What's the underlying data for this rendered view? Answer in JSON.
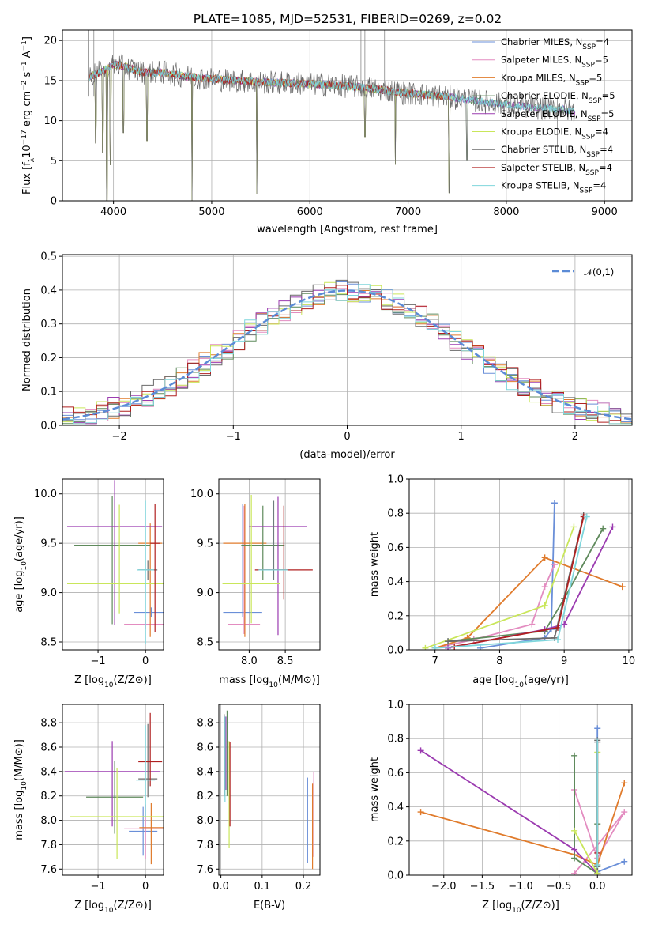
{
  "title": "PLATE=1085, MJD=52531, FIBERID=0269, z=0.02",
  "colors": [
    "#6a8fd8",
    "#e38cc0",
    "#e07b2c",
    "#5f8a5c",
    "#9b3bb0",
    "#c9e65a",
    "#6a6a6a",
    "#b02020",
    "#7fd6dc"
  ],
  "chart_data": [
    {
      "id": "spectrum",
      "type": "line",
      "xlabel": "wavelength [Angstrom, rest frame]",
      "ylabel": "Flux [f_λ10^-17 erg cm^-2 s^-1 A^-1]",
      "xlim": [
        3480,
        9280
      ],
      "ylim": [
        0,
        21.3
      ],
      "xticks": [
        4000,
        5000,
        6000,
        7000,
        8000,
        9000
      ],
      "yticks": [
        0,
        5,
        10,
        15,
        20
      ],
      "legend_position": "top-right",
      "series": [
        {
          "name": "Chabrier MILES, N_SSP=4",
          "label_main": "Chabrier MILES, N",
          "label_sub": "SSP",
          "label_tail": "=4",
          "color": "#6a8fd8"
        },
        {
          "name": "Salpeter MILES, N_SSP=5",
          "label_main": "Salpeter MILES, N",
          "label_sub": "SSP",
          "label_tail": "=5",
          "color": "#e38cc0"
        },
        {
          "name": "Kroupa MILES, N_SSP=5",
          "label_main": "Kroupa MILES, N",
          "label_sub": "SSP",
          "label_tail": "=5",
          "color": "#e07b2c"
        },
        {
          "name": "Chabrier ELODIE, N_SSP=5",
          "label_main": "Chabrier ELODIE, N",
          "label_sub": "SSP",
          "label_tail": "=5",
          "color": "#5f8a5c"
        },
        {
          "name": "Salpeter ELODIE, N_SSP=5",
          "label_main": "Salpeter ELODIE, N",
          "label_sub": "SSP",
          "label_tail": "=5",
          "color": "#9b3bb0"
        },
        {
          "name": "Kroupa ELODIE, N_SSP=4",
          "label_main": "Kroupa ELODIE, N",
          "label_sub": "SSP",
          "label_tail": "=4",
          "color": "#c9e65a"
        },
        {
          "name": "Chabrier STELIB, N_SSP=4",
          "label_main": "Chabrier STELIB, N",
          "label_sub": "SSP",
          "label_tail": "=4",
          "color": "#6a6a6a"
        },
        {
          "name": "Salpeter STELIB, N_SSP=4",
          "label_main": "Salpeter STELIB, N",
          "label_sub": "SSP",
          "label_tail": "=4",
          "color": "#b02020"
        },
        {
          "name": "Kroupa STELIB, N_SSP=4",
          "label_main": "Kroupa STELIB, N",
          "label_sub": "SSP",
          "label_tail": "=4",
          "color": "#7fd6dc"
        }
      ],
      "continuum": [
        [
          3750,
          15.5
        ],
        [
          3900,
          16.2
        ],
        [
          4000,
          17.0
        ],
        [
          4100,
          16.8
        ],
        [
          4300,
          16.0
        ],
        [
          4500,
          16.0
        ],
        [
          4700,
          15.6
        ],
        [
          5000,
          15.2
        ],
        [
          5500,
          14.8
        ],
        [
          6000,
          14.6
        ],
        [
          6500,
          14.2
        ],
        [
          7000,
          13.4
        ],
        [
          7400,
          13.0
        ],
        [
          7600,
          12.6
        ],
        [
          8000,
          12.0
        ],
        [
          8300,
          11.6
        ],
        [
          8600,
          11.4
        ],
        [
          8700,
          11.0
        ]
      ],
      "absorption_lines": [
        [
          3820,
          7.2
        ],
        [
          3890,
          6.0
        ],
        [
          3933,
          0.0
        ],
        [
          3968,
          4.5
        ],
        [
          4102,
          8.5
        ],
        [
          4340,
          7.5
        ],
        [
          4800,
          0.0
        ],
        [
          5460,
          0.8
        ],
        [
          6560,
          8.0
        ],
        [
          6870,
          4.5
        ],
        [
          7420,
          1.0
        ],
        [
          7600,
          5.0
        ]
      ],
      "emission_spikes": [
        [
          3750,
          21.3
        ],
        [
          3800,
          21.3
        ],
        [
          6520,
          21.3
        ],
        [
          6560,
          21.3
        ],
        [
          6760,
          21.3
        ],
        [
          8520,
          6.0
        ]
      ]
    },
    {
      "id": "residual_histogram",
      "type": "bar",
      "xlabel": "(data-model)/error",
      "ylabel": "Normed distribution",
      "xlim": [
        -2.5,
        2.5
      ],
      "ylim": [
        0,
        0.505
      ],
      "xticks": [
        -2,
        -1,
        0,
        1,
        2
      ],
      "yticks": [
        0.0,
        0.1,
        0.2,
        0.3,
        0.4,
        0.5
      ],
      "bin_width": 0.1,
      "gaussian_label": "𝒩(0,1)",
      "gaussian_color": "#5b8bd6",
      "legend_position": "top-right"
    },
    {
      "id": "z_vs_age",
      "type": "scatter",
      "xlabel": "Z [log10(Z/Z⊙)]",
      "xlabel_main": "Z [log",
      "xlabel_sub": "10",
      "xlabel_tail": "(Z/Z⊙)]",
      "ylabel": "age [log10(age/yr)]",
      "ylabel_main": "age  [log",
      "ylabel_sub": "10",
      "ylabel_tail": "(age/yr)]",
      "xlim": [
        -1.75,
        0.38
      ],
      "ylim": [
        8.42,
        10.15
      ],
      "xticks": [
        -1,
        0
      ],
      "yticks": [
        8.5,
        9.0,
        9.5,
        10.0
      ],
      "points": [
        {
          "x": 0.12,
          "y": 8.8,
          "xerr": 0.37,
          "yerr_lo": 0.05,
          "yerr_hi": 0.05,
          "color": "#6a8fd8"
        },
        {
          "x": 0.0,
          "y": 8.68,
          "xerr": 0.45,
          "yerr_lo": 0.05,
          "yerr_hi": 0.05,
          "color": "#e38cc0"
        },
        {
          "x": 0.1,
          "y": 9.5,
          "xerr": 0.25,
          "yerr_lo": 0.95,
          "yerr_hi": 0.2,
          "color": "#e07b2c"
        },
        {
          "x": -0.7,
          "y": 9.48,
          "xerr": 0.8,
          "yerr_lo": 0.8,
          "yerr_hi": 0.5,
          "color": "#5f8a5c"
        },
        {
          "x": -0.65,
          "y": 9.67,
          "xerr": 1.0,
          "yerr_lo": 1.0,
          "yerr_hi": 0.47,
          "color": "#9b3bb0"
        },
        {
          "x": -0.55,
          "y": 9.09,
          "xerr": 1.1,
          "yerr_lo": 0.3,
          "yerr_hi": 0.8,
          "color": "#c9e65a"
        },
        {
          "x": 0.05,
          "y": 9.23,
          "xerr": 0.2,
          "yerr_lo": 0.1,
          "yerr_hi": 0.1,
          "color": "#6a6a6a"
        },
        {
          "x": 0.2,
          "y": 9.5,
          "xerr": 0.1,
          "yerr_lo": 0.9,
          "yerr_hi": 0.4,
          "color": "#b02020"
        },
        {
          "x": 0.0,
          "y": 9.23,
          "xerr": 0.18,
          "yerr_lo": 0.75,
          "yerr_hi": 0.7,
          "color": "#7fd6dc"
        }
      ]
    },
    {
      "id": "mass_vs_age",
      "type": "scatter",
      "xlabel": "mass [log10(M/M⊙)]",
      "xlabel_main": "mass [log",
      "xlabel_sub": "10",
      "xlabel_tail": "(M/M⊙)]",
      "xlim": [
        7.58,
        8.98
      ],
      "ylim": [
        8.42,
        10.15
      ],
      "xticks": [
        8.0,
        8.5
      ],
      "yticks": [
        8.5,
        9.0,
        9.5,
        10.0
      ],
      "points": [
        {
          "x": 7.91,
          "y": 8.8,
          "xerr": 0.27,
          "yerr_lo": 0.05,
          "yerr_hi": 1.1,
          "color": "#6a8fd8"
        },
        {
          "x": 7.93,
          "y": 8.68,
          "xerr": 0.22,
          "yerr_lo": 0.1,
          "yerr_hi": 1.2,
          "color": "#e38cc0"
        },
        {
          "x": 7.94,
          "y": 9.5,
          "xerr": 0.3,
          "yerr_lo": 0.95,
          "yerr_hi": 0.4,
          "color": "#e07b2c"
        },
        {
          "x": 8.19,
          "y": 9.48,
          "xerr": 0.3,
          "yerr_lo": 0.35,
          "yerr_hi": 0.4,
          "color": "#5f8a5c"
        },
        {
          "x": 8.4,
          "y": 9.67,
          "xerr": 0.4,
          "yerr_lo": 1.1,
          "yerr_hi": 0.3,
          "color": "#9b3bb0"
        },
        {
          "x": 8.03,
          "y": 9.09,
          "xerr": 0.4,
          "yerr_lo": 0.4,
          "yerr_hi": 0.9,
          "color": "#c9e65a"
        },
        {
          "x": 8.34,
          "y": 9.23,
          "xerr": 0.2,
          "yerr_lo": 0.1,
          "yerr_hi": 0.7,
          "color": "#6a6a6a"
        },
        {
          "x": 8.48,
          "y": 9.23,
          "xerr": 0.4,
          "yerr_lo": 0.3,
          "yerr_hi": 0.65,
          "color": "#b02020"
        },
        {
          "x": 8.33,
          "y": 9.23,
          "xerr": 0.2,
          "yerr_lo": 0.1,
          "yerr_hi": 0.7,
          "color": "#7fd6dc"
        }
      ]
    },
    {
      "id": "age_vs_mass_weight",
      "type": "line",
      "xlabel": "age  [log10(age/yr)]",
      "xlabel_main": "age  [log",
      "xlabel_sub": "10",
      "xlabel_tail": "(age/yr)]",
      "ylabel": "mass weight",
      "xlim": [
        6.6,
        10.05
      ],
      "ylim": [
        0,
        1.0
      ],
      "xticks": [
        7,
        8,
        9,
        10
      ],
      "yticks": [
        0.0,
        0.2,
        0.4,
        0.6,
        0.8,
        1.0
      ],
      "series": [
        {
          "color": "#6a8fd8",
          "points": [
            [
              7.7,
              0.01
            ],
            [
              8.7,
              0.07
            ],
            [
              8.8,
              0.12
            ],
            [
              8.85,
              0.86
            ]
          ]
        },
        {
          "color": "#e38cc0",
          "points": [
            [
              7.0,
              0.01
            ],
            [
              7.6,
              0.06
            ],
            [
              8.5,
              0.15
            ],
            [
              8.7,
              0.37
            ],
            [
              8.85,
              0.5
            ]
          ]
        },
        {
          "color": "#e07b2c",
          "points": [
            [
              7.0,
              0.01
            ],
            [
              7.5,
              0.07
            ],
            [
              8.7,
              0.54
            ],
            [
              9.9,
              0.37
            ]
          ]
        },
        {
          "color": "#5f8a5c",
          "points": [
            [
              7.2,
              0.05
            ],
            [
              8.7,
              0.11
            ],
            [
              9.0,
              0.3
            ],
            [
              9.6,
              0.71
            ]
          ]
        },
        {
          "color": "#9b3bb0",
          "points": [
            [
              7.2,
              0.01
            ],
            [
              8.7,
              0.12
            ],
            [
              9.0,
              0.15
            ],
            [
              9.75,
              0.72
            ]
          ]
        },
        {
          "color": "#c9e65a",
          "points": [
            [
              6.85,
              0.01
            ],
            [
              8.7,
              0.26
            ],
            [
              9.15,
              0.72
            ]
          ]
        },
        {
          "color": "#6a6a6a",
          "points": [
            [
              7.2,
              0.05
            ],
            [
              8.85,
              0.07
            ],
            [
              9.3,
              0.79
            ]
          ]
        },
        {
          "color": "#b02020",
          "points": [
            [
              7.3,
              0.02
            ],
            [
              8.9,
              0.13
            ],
            [
              9.3,
              0.78
            ]
          ]
        },
        {
          "color": "#7fd6dc",
          "points": [
            [
              7.0,
              0.01
            ],
            [
              8.9,
              0.06
            ],
            [
              9.35,
              0.78
            ]
          ]
        }
      ]
    },
    {
      "id": "z_vs_mass",
      "type": "scatter",
      "xlabel": "Z [log10(Z/Z⊙)]",
      "xlabel_main": "Z [log",
      "xlabel_sub": "10",
      "xlabel_tail": "(Z/Z⊙)]",
      "ylabel": "mass [log10(M/M⊙)]",
      "ylabel_main": "mass [log",
      "ylabel_sub": "10",
      "ylabel_tail": "(M/M⊙)]",
      "xlim": [
        -1.75,
        0.38
      ],
      "ylim": [
        7.55,
        8.95
      ],
      "xticks": [
        -1,
        0
      ],
      "yticks": [
        7.6,
        7.8,
        8.0,
        8.2,
        8.4,
        8.6,
        8.8
      ],
      "points": [
        {
          "x": -0.05,
          "y": 7.91,
          "xerr": 0.3,
          "yerr_lo": 0.2,
          "yerr_hi": 0.2,
          "color": "#6a8fd8"
        },
        {
          "x": 0.0,
          "y": 7.93,
          "xerr": 0.45,
          "yerr_lo": 0.25,
          "yerr_hi": 0.2,
          "color": "#e38cc0"
        },
        {
          "x": 0.12,
          "y": 7.94,
          "xerr": 0.25,
          "yerr_lo": 0.3,
          "yerr_hi": 0.2,
          "color": "#e07b2c"
        },
        {
          "x": -0.65,
          "y": 8.19,
          "xerr": 0.6,
          "yerr_lo": 0.3,
          "yerr_hi": 0.3,
          "color": "#5f8a5c"
        },
        {
          "x": -0.7,
          "y": 8.4,
          "xerr": 1.0,
          "yerr_lo": 0.45,
          "yerr_hi": 0.25,
          "color": "#9b3bb0"
        },
        {
          "x": -0.6,
          "y": 8.03,
          "xerr": 1.0,
          "yerr_lo": 0.35,
          "yerr_hi": 0.4,
          "color": "#c9e65a"
        },
        {
          "x": 0.05,
          "y": 8.34,
          "xerr": 0.2,
          "yerr_lo": 0.15,
          "yerr_hi": 0.45,
          "color": "#6a6a6a"
        },
        {
          "x": 0.1,
          "y": 8.48,
          "xerr": 0.25,
          "yerr_lo": 0.2,
          "yerr_hi": 0.4,
          "color": "#b02020"
        },
        {
          "x": 0.0,
          "y": 8.33,
          "xerr": 0.2,
          "yerr_lo": 0.3,
          "yerr_hi": 0.45,
          "color": "#7fd6dc"
        }
      ]
    },
    {
      "id": "ebv_vs_mass",
      "type": "scatter",
      "xlabel": "E(B-V)",
      "xlim": [
        -0.005,
        0.24
      ],
      "ylim": [
        7.55,
        8.95
      ],
      "xticks": [
        0.0,
        0.1,
        0.2
      ],
      "yticks": [
        7.6,
        7.8,
        8.0,
        8.2,
        8.4,
        8.6,
        8.8
      ],
      "points": [
        {
          "x": 0.21,
          "y": 8.0,
          "yerr_lo": 0.35,
          "yerr_hi": 0.35,
          "color": "#6a8fd8"
        },
        {
          "x": 0.225,
          "y": 8.1,
          "yerr_lo": 0.4,
          "yerr_hi": 0.3,
          "color": "#e38cc0"
        },
        {
          "x": 0.222,
          "y": 7.95,
          "yerr_lo": 0.35,
          "yerr_hi": 0.35,
          "color": "#e07b2c"
        },
        {
          "x": 0.015,
          "y": 8.5,
          "yerr_lo": 0.3,
          "yerr_hi": 0.4,
          "color": "#5f8a5c"
        },
        {
          "x": 0.012,
          "y": 8.5,
          "yerr_lo": 0.25,
          "yerr_hi": 0.35,
          "color": "#9b3bb0"
        },
        {
          "x": 0.02,
          "y": 8.2,
          "yerr_lo": 0.43,
          "yerr_hi": 0.45,
          "color": "#c9e65a"
        },
        {
          "x": 0.008,
          "y": 8.55,
          "yerr_lo": 0.35,
          "yerr_hi": 0.32,
          "color": "#6a6a6a"
        },
        {
          "x": 0.022,
          "y": 8.3,
          "yerr_lo": 0.35,
          "yerr_hi": 0.34,
          "color": "#b02020"
        },
        {
          "x": 0.01,
          "y": 8.45,
          "yerr_lo": 0.3,
          "yerr_hi": 0.4,
          "color": "#7fd6dc"
        }
      ]
    },
    {
      "id": "z_vs_mass_weight",
      "type": "line",
      "xlabel": "Z [log10(Z/Z⊙)]",
      "xlabel_main": "Z [log",
      "xlabel_sub": "10",
      "xlabel_tail": "(Z/Z⊙)]",
      "ylabel": "mass weight",
      "xlim": [
        -2.45,
        0.45
      ],
      "ylim": [
        0,
        1.0
      ],
      "xticks": [
        -2.0,
        -1.5,
        -1.0,
        -0.5,
        0.0
      ],
      "yticks": [
        0.0,
        0.2,
        0.4,
        0.6,
        0.8,
        1.0
      ],
      "series": [
        {
          "color": "#6a8fd8",
          "points": [
            [
              0.35,
              0.08
            ],
            [
              0.0,
              0.02
            ],
            [
              0.0,
              0.86
            ]
          ]
        },
        {
          "color": "#e38cc0",
          "points": [
            [
              -0.3,
              0.5
            ],
            [
              0.0,
              0.1
            ],
            [
              0.35,
              0.37
            ],
            [
              -0.3,
              0.01
            ]
          ]
        },
        {
          "color": "#e07b2c",
          "points": [
            [
              -2.3,
              0.37
            ],
            [
              -0.3,
              0.12
            ],
            [
              0.0,
              0.06
            ],
            [
              0.35,
              0.54
            ]
          ]
        },
        {
          "color": "#5f8a5c",
          "points": [
            [
              -0.3,
              0.7
            ],
            [
              -0.3,
              0.1
            ],
            [
              0.0,
              0.01
            ],
            [
              0.0,
              0.3
            ]
          ]
        },
        {
          "color": "#9b3bb0",
          "points": [
            [
              -2.3,
              0.73
            ],
            [
              -0.3,
              0.15
            ],
            [
              0.0,
              0.01
            ]
          ]
        },
        {
          "color": "#c9e65a",
          "points": [
            [
              -0.3,
              0.26
            ],
            [
              0.0,
              0.01
            ],
            [
              0.0,
              0.72
            ]
          ]
        },
        {
          "color": "#6a6a6a",
          "points": [
            [
              0.0,
              0.79
            ],
            [
              0.0,
              0.05
            ]
          ]
        },
        {
          "color": "#b02020",
          "points": [
            [
              0.0,
              0.78
            ],
            [
              0.0,
              0.13
            ]
          ]
        },
        {
          "color": "#7fd6dc",
          "points": [
            [
              0.0,
              0.78
            ],
            [
              0.0,
              0.06
            ]
          ]
        }
      ]
    }
  ]
}
